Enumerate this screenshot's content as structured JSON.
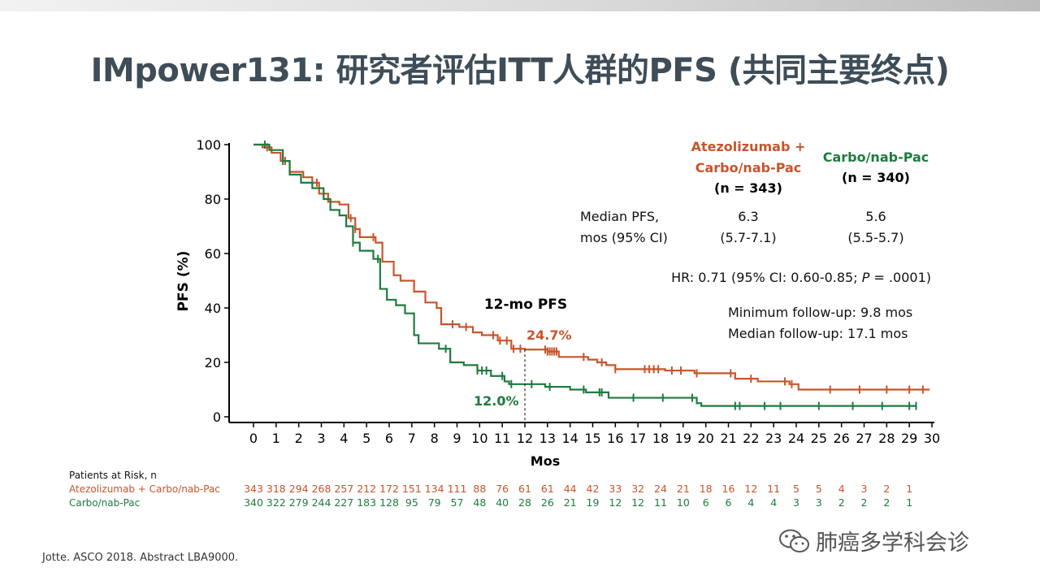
{
  "title": "IMpower131: 研究者评估ITT人群的PFS (共同主要终点)",
  "colors": {
    "atezo": "#c8542b",
    "carbo": "#1e7b3e",
    "title": "#3e4d57"
  },
  "chart_data": {
    "type": "line",
    "subtype": "kaplan-meier",
    "ylabel": "PFS (%)",
    "xlabel": "Mos",
    "xlim": [
      0,
      30
    ],
    "ylim": [
      0,
      100
    ],
    "x_ticks": [
      "0",
      "1",
      "2",
      "3",
      "4",
      "5",
      "6",
      "7",
      "8",
      "9",
      "10",
      "11",
      "12",
      "13",
      "14",
      "15",
      "16",
      "17",
      "18",
      "19",
      "20",
      "21",
      "22",
      "23",
      "24",
      "25",
      "26",
      "27",
      "28",
      "29",
      "30"
    ],
    "y_ticks": [
      "0",
      "20",
      "40",
      "60",
      "80",
      "100"
    ],
    "series": [
      {
        "name": "Atezolizumab + Carbo/nab-Pac",
        "color": "#c8542b",
        "steps": [
          [
            0,
            100
          ],
          [
            0.4,
            99
          ],
          [
            0.8,
            97
          ],
          [
            1.2,
            94
          ],
          [
            1.6,
            90
          ],
          [
            2.2,
            88
          ],
          [
            2.6,
            86
          ],
          [
            2.9,
            82
          ],
          [
            3.3,
            79
          ],
          [
            3.8,
            78
          ],
          [
            4.2,
            73
          ],
          [
            4.5,
            69
          ],
          [
            4.7,
            66
          ],
          [
            5.4,
            64
          ],
          [
            5.7,
            57
          ],
          [
            6.2,
            52
          ],
          [
            6.5,
            50
          ],
          [
            7.1,
            46
          ],
          [
            7.6,
            42
          ],
          [
            8.1,
            40
          ],
          [
            8.3,
            34
          ],
          [
            9.1,
            33
          ],
          [
            9.7,
            31
          ],
          [
            10.1,
            30
          ],
          [
            10.8,
            28
          ],
          [
            11.4,
            25
          ],
          [
            12.0,
            24.7
          ],
          [
            13.0,
            24
          ],
          [
            13.5,
            22
          ],
          [
            14.8,
            21
          ],
          [
            15.2,
            20
          ],
          [
            15.6,
            19
          ],
          [
            16.0,
            17.5
          ],
          [
            18.2,
            17
          ],
          [
            19.5,
            16
          ],
          [
            20.9,
            16
          ],
          [
            21.3,
            14
          ],
          [
            22.3,
            13
          ],
          [
            23.7,
            12
          ],
          [
            24.1,
            10
          ],
          [
            29.9,
            10
          ]
        ],
        "censor_x": [
          0.6,
          1.4,
          2.8,
          4.3,
          4.5,
          5.3,
          8.8,
          9.4,
          10.6,
          10.9,
          11.2,
          11.5,
          11.8,
          12.9,
          13.0,
          13.1,
          13.2,
          13.3,
          13.4,
          14.6,
          15.4,
          16.0,
          17.3,
          17.5,
          17.7,
          17.9,
          18.5,
          18.9,
          19.6,
          21.1,
          22.0,
          23.5,
          23.8,
          25.5,
          26.8,
          28.0,
          29.0,
          29.6
        ]
      },
      {
        "name": "Carbo/nab-Pac",
        "color": "#1e7b3e",
        "steps": [
          [
            0,
            100
          ],
          [
            0.7,
            98
          ],
          [
            1.3,
            94
          ],
          [
            1.6,
            89
          ],
          [
            2.1,
            86
          ],
          [
            2.6,
            84
          ],
          [
            3.1,
            80
          ],
          [
            3.4,
            76
          ],
          [
            3.8,
            74
          ],
          [
            4.1,
            70
          ],
          [
            4.4,
            64
          ],
          [
            4.7,
            61
          ],
          [
            5.3,
            58
          ],
          [
            5.6,
            47
          ],
          [
            5.9,
            43
          ],
          [
            6.3,
            41
          ],
          [
            6.7,
            38
          ],
          [
            7.1,
            30
          ],
          [
            7.3,
            27
          ],
          [
            8.2,
            25
          ],
          [
            8.7,
            20
          ],
          [
            9.3,
            19
          ],
          [
            9.9,
            17
          ],
          [
            10.5,
            15
          ],
          [
            11.1,
            13
          ],
          [
            11.3,
            12
          ],
          [
            12.0,
            12.0
          ],
          [
            12.9,
            11
          ],
          [
            14.0,
            10
          ],
          [
            14.7,
            9
          ],
          [
            15.7,
            7
          ],
          [
            19.1,
            7
          ],
          [
            19.6,
            5
          ],
          [
            19.8,
            4
          ],
          [
            29.3,
            4
          ]
        ],
        "censor_x": [
          0.5,
          1.3,
          4.4,
          5.5,
          8.5,
          9.9,
          10.1,
          10.3,
          11.0,
          11.4,
          12.3,
          13.1,
          14.6,
          15.3,
          15.4,
          16.8,
          18.1,
          19.4,
          21.3,
          21.5,
          22.6,
          23.3,
          25.0,
          26.5,
          27.8,
          29.0,
          29.3
        ]
      }
    ],
    "annotations": [
      {
        "label": "12-mo PFS",
        "x": 12
      },
      {
        "label": "24.7%",
        "series": 0,
        "x": 12,
        "y": 24.7
      },
      {
        "label": "12.0%",
        "series": 1,
        "x": 12,
        "y": 12.0
      }
    ]
  },
  "legend": {
    "atezo_line1": "Atezolizumab  +",
    "atezo_line2": "Carbo/nab-Pac",
    "atezo_n": "(n = 343)",
    "carbo_line1": "Carbo/nab-Pac",
    "carbo_n": "(n = 340)"
  },
  "stats": {
    "median_label_1": "Median PFS,",
    "median_label_2": "mos (95% CI)",
    "atezo_median": "6.3",
    "atezo_ci": "(5.7-7.1)",
    "carbo_median": "5.6",
    "carbo_ci": "(5.5-5.7)",
    "hr_prefix": "HR: 0.71 (95% CI: 0.60-0.85; ",
    "hr_p": "P",
    "hr_suffix": " = .0001)",
    "min_follow": "Minimum follow-up: 9.8 mos",
    "median_follow": "Median follow-up: 17.1 mos"
  },
  "risk": {
    "header": "Patients at Risk, n",
    "atezo_label": "Atezolizumab + Carbo/nab-Pac",
    "carbo_label": "Carbo/nab-Pac",
    "atezo_values": [
      "343",
      "318",
      "294",
      "268",
      "257",
      "212",
      "172",
      "151",
      "134",
      "111",
      "88",
      "76",
      "61",
      "61",
      "44",
      "42",
      "33",
      "32",
      "24",
      "21",
      "18",
      "16",
      "12",
      "11",
      "5",
      "5",
      "4",
      "3",
      "2",
      "1"
    ],
    "carbo_values": [
      "340",
      "322",
      "279",
      "244",
      "227",
      "183",
      "128",
      "95",
      "79",
      "57",
      "48",
      "40",
      "28",
      "26",
      "21",
      "19",
      "12",
      "12",
      "11",
      "10",
      "6",
      "6",
      "4",
      "4",
      "3",
      "3",
      "2",
      "2",
      "2",
      "1"
    ]
  },
  "footnote": "Jotte. ASCO 2018. Abstract LBA9000.",
  "watermark": "肺癌多学科会诊"
}
